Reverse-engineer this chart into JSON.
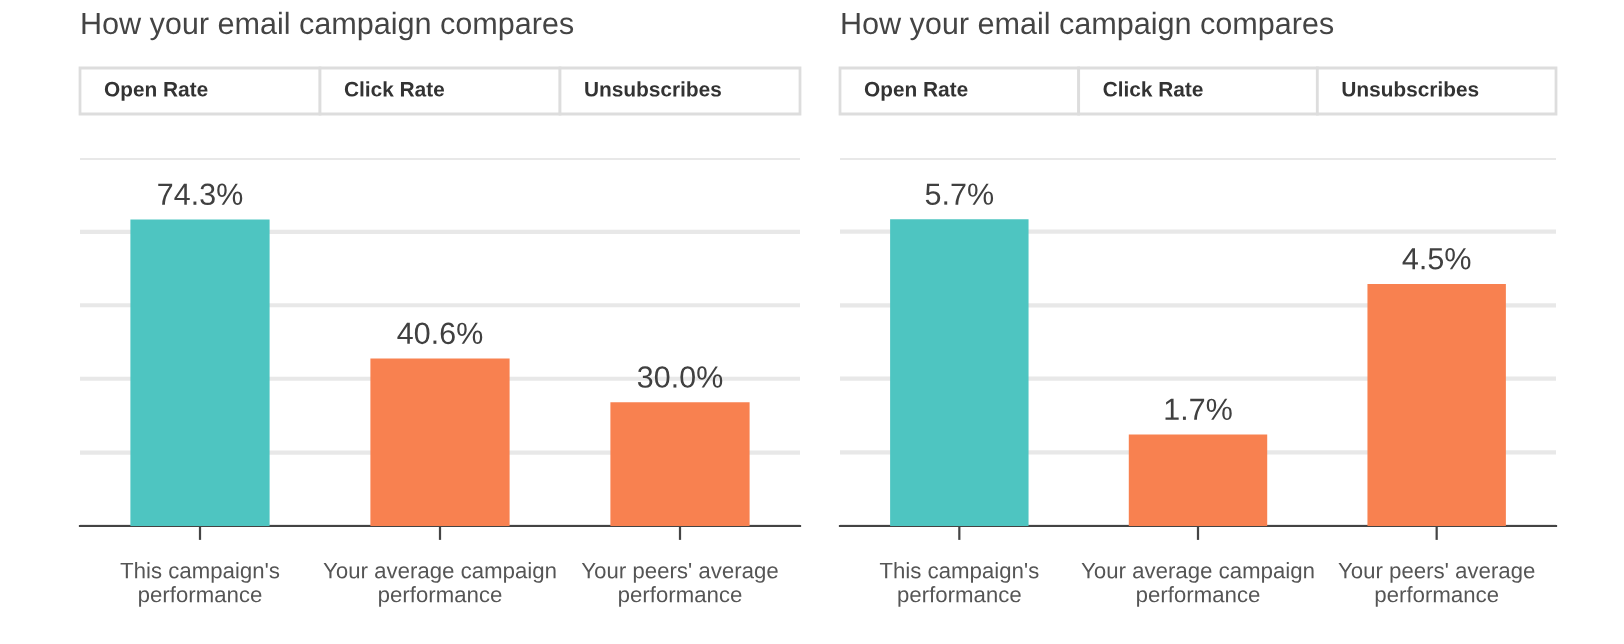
{
  "chart_data": [
    {
      "type": "bar",
      "title": "How your email campaign compares",
      "annotations": [
        "Open Rate",
        "Click Rate",
        "Unsubscribes"
      ],
      "categories": [
        "This campaign's performance",
        "Your average campaign performance",
        "Your peers' average performance"
      ],
      "values": [
        74.3,
        40.6,
        30.0
      ],
      "colors": [
        "#4ec5c1",
        "#f88150",
        "#f88150"
      ],
      "value_labels": [
        "74.3%",
        "40.6%",
        "30.0%"
      ],
      "ylim": [
        0,
        89.2
      ],
      "yticks": [
        {
          "value": 0,
          "label": null
        },
        {
          "value": 17.8,
          "label": null
        },
        {
          "value": 35.7,
          "label": null
        },
        {
          "value": 53.5,
          "label": null
        },
        {
          "value": 71.3,
          "label": null
        },
        {
          "value": 89.2,
          "label": null
        }
      ],
      "grid": "y",
      "tick_labels": "x"
    },
    {
      "type": "bar",
      "title": "How your email campaign compares",
      "annotations": [
        "Open Rate",
        "Click Rate",
        "Unsubscribes"
      ],
      "categories": [
        "This campaign's performance",
        "Your average campaign performance",
        "Your peers' average performance"
      ],
      "values": [
        5.7,
        1.7,
        4.5
      ],
      "colors": [
        "#4ec5c1",
        "#f88150",
        "#f88150"
      ],
      "value_labels": [
        "5.7%",
        "1.7%",
        "4.5%"
      ],
      "ylim": [
        0,
        6.84
      ],
      "yticks": [
        {
          "value": 0,
          "label": null
        },
        {
          "value": 1.37,
          "label": null
        },
        {
          "value": 2.74,
          "label": null
        },
        {
          "value": 4.1,
          "label": null
        },
        {
          "value": 5.47,
          "label": null
        },
        {
          "value": 6.84,
          "label": null
        }
      ],
      "grid": "y",
      "tick_labels": "x"
    }
  ]
}
